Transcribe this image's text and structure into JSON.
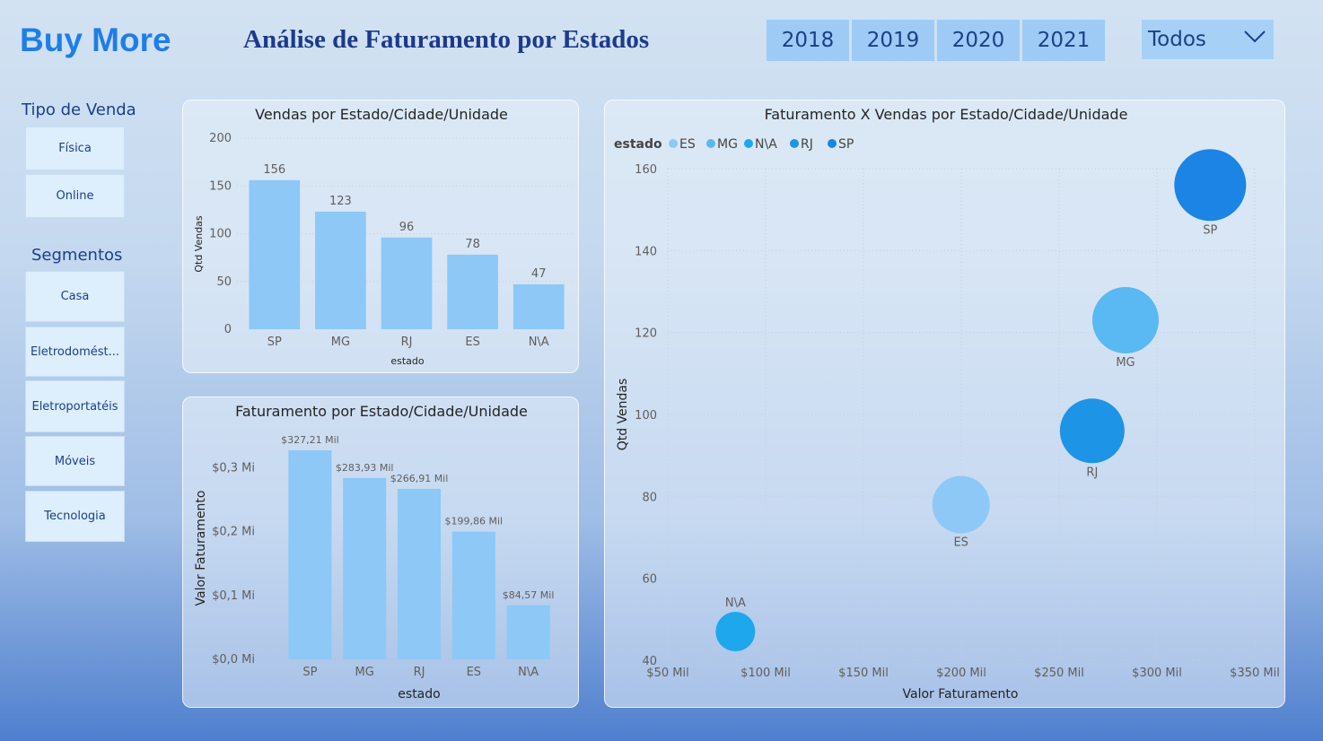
{
  "header": {
    "brand": "Buy More",
    "title": "Análise de Faturamento por Estados",
    "years": [
      "2018",
      "2019",
      "2020",
      "2021"
    ],
    "dropdown_value": "Todos"
  },
  "slicers": {
    "tipo_venda": {
      "title": "Tipo de Venda",
      "items": [
        "Física",
        "Online"
      ]
    },
    "segmentos": {
      "title": "Segmentos",
      "items": [
        "Casa",
        "Eletrodomést...",
        "Eletroportatéis",
        "Móveis",
        "Tecnologia"
      ]
    }
  },
  "colors": {
    "bar": "#8dc8f6",
    "brand": "#1e7ee8",
    "title_text": "#1d3a8a",
    "ES": "#8dc8f6",
    "MG": "#5ab8f2",
    "N\\A": "#1ea7ec",
    "RJ": "#1e94e6",
    "SP": "#1b84e5"
  },
  "chart_data": [
    {
      "type": "bar",
      "title": "Vendas por Estado/Cidade/Unidade",
      "xlabel": "estado",
      "ylabel": "Qtd Vendas",
      "categories": [
        "SP",
        "MG",
        "RJ",
        "ES",
        "N\\A"
      ],
      "values": [
        156,
        123,
        96,
        78,
        47
      ],
      "data_labels": [
        "156",
        "123",
        "96",
        "78",
        "47"
      ],
      "ylim": [
        0,
        200
      ],
      "yticks": [
        0,
        50,
        100,
        150,
        200
      ],
      "ytick_labels": [
        "0",
        "50",
        "100",
        "150",
        "200"
      ],
      "grid": true
    },
    {
      "type": "bar",
      "title": "Faturamento por Estado/Cidade/Unidade",
      "xlabel": "estado",
      "ylabel": "Valor Faturamento",
      "categories": [
        "SP",
        "MG",
        "RJ",
        "ES",
        "N\\A"
      ],
      "values": [
        327.21,
        283.93,
        266.91,
        199.86,
        84.57
      ],
      "data_labels": [
        "$327,21 Mil",
        "$283,93 Mil",
        "$266,91 Mil",
        "$199,86 Mil",
        "$84,57 Mil"
      ],
      "ylim": [
        0,
        330
      ],
      "yticks": [
        0,
        100,
        200,
        300
      ],
      "ytick_labels": [
        "$0,0 Mi",
        "$0,1 Mi",
        "$0,2 Mi",
        "$0,3 Mi"
      ],
      "grid": false
    },
    {
      "type": "scatter",
      "title": "Faturamento X Vendas por Estado/Cidade/Unidade",
      "xlabel": "Valor Faturamento",
      "ylabel": "Qtd Vendas",
      "legend_title": "estado",
      "legend_position": "top-left",
      "xlim": [
        50,
        350
      ],
      "ylim": [
        40,
        160
      ],
      "xticks": [
        50,
        100,
        150,
        200,
        250,
        300,
        350
      ],
      "xtick_labels": [
        "$50 Mil",
        "$100 Mil",
        "$150 Mil",
        "$200 Mil",
        "$250 Mil",
        "$300 Mil",
        "$350 Mil"
      ],
      "yticks": [
        40,
        60,
        80,
        100,
        120,
        140,
        160
      ],
      "ytick_labels": [
        "40",
        "60",
        "80",
        "100",
        "120",
        "140",
        "160"
      ],
      "grid": true,
      "series": [
        {
          "name": "ES",
          "x": 199.86,
          "y": 78
        },
        {
          "name": "MG",
          "x": 283.93,
          "y": 123
        },
        {
          "name": "N\\A",
          "x": 84.57,
          "y": 47
        },
        {
          "name": "RJ",
          "x": 266.91,
          "y": 96
        },
        {
          "name": "SP",
          "x": 327.21,
          "y": 156
        }
      ]
    }
  ]
}
